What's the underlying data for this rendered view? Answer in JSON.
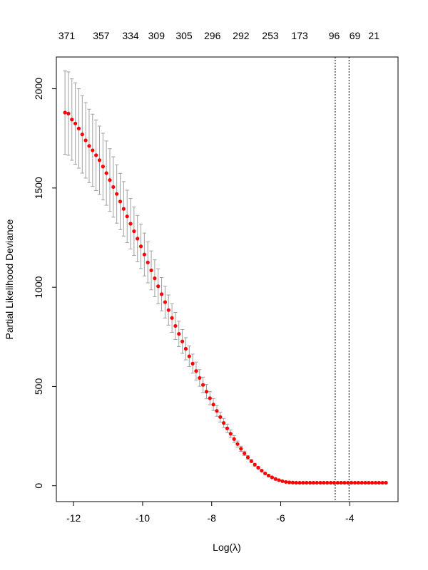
{
  "chart_data": {
    "type": "scatter",
    "xlabel": "Log(λ)",
    "ylabel": "Partial Likelihood Deviance",
    "xlim": [
      -12.5,
      -2.6
    ],
    "ylim": [
      -80,
      2160
    ],
    "x_ticks": [
      -12,
      -10,
      -8,
      -6,
      -4
    ],
    "y_ticks": [
      0,
      500,
      1000,
      1500,
      2000
    ],
    "grid": false,
    "point_color": "#ff0000",
    "errorbar_color": "#a0a0a0",
    "top_axis": {
      "labels": [
        "371",
        "357",
        "334",
        "309",
        "305",
        "296",
        "292",
        "253",
        "173",
        "96",
        "69",
        "21"
      ],
      "positions": [
        -12.2,
        -11.2,
        -10.35,
        -9.6,
        -8.8,
        -7.98,
        -7.15,
        -6.3,
        -5.45,
        -4.45,
        -3.85,
        -3.3
      ]
    },
    "vlines": [
      -4.42,
      -4.02
    ],
    "series": [
      {
        "x": [
          -12.25,
          -12.15,
          -12.05,
          -11.95,
          -11.85,
          -11.75,
          -11.65,
          -11.55,
          -11.45,
          -11.35,
          -11.25,
          -11.15,
          -11.05,
          -10.95,
          -10.85,
          -10.75,
          -10.65,
          -10.55,
          -10.45,
          -10.35,
          -10.25,
          -10.15,
          -10.05,
          -9.95,
          -9.85,
          -9.75,
          -9.65,
          -9.55,
          -9.45,
          -9.35,
          -9.25,
          -9.15,
          -9.05,
          -8.95,
          -8.85,
          -8.75,
          -8.65,
          -8.55,
          -8.45,
          -8.35,
          -8.25,
          -8.15,
          -8.05,
          -7.95,
          -7.85,
          -7.75,
          -7.65,
          -7.55,
          -7.45,
          -7.35,
          -7.25,
          -7.15,
          -7.05,
          -6.95,
          -6.85,
          -6.75,
          -6.65,
          -6.55,
          -6.45,
          -6.35,
          -6.25,
          -6.15,
          -6.05,
          -5.95,
          -5.85,
          -5.75,
          -5.65,
          -5.55,
          -5.45,
          -5.35,
          -5.25,
          -5.15,
          -5.05,
          -4.95,
          -4.85,
          -4.75,
          -4.65,
          -4.55,
          -4.45,
          -4.35,
          -4.25,
          -4.15,
          -4.05,
          -3.95,
          -3.85,
          -3.75,
          -3.65,
          -3.55,
          -3.45,
          -3.35,
          -3.25,
          -3.15,
          -3.05,
          -2.95
        ],
        "y": [
          1880,
          1875,
          1845,
          1825,
          1800,
          1770,
          1740,
          1712,
          1690,
          1665,
          1640,
          1608,
          1575,
          1540,
          1505,
          1470,
          1432,
          1395,
          1357,
          1320,
          1282,
          1245,
          1206,
          1165,
          1125,
          1085,
          1045,
          1005,
          965,
          925,
          885,
          845,
          805,
          765,
          727,
          690,
          652,
          615,
          578,
          543,
          508,
          474,
          441,
          409,
          377,
          346,
          316,
          289,
          262,
          235,
          210,
          186,
          163,
          143,
          124,
          106,
          91,
          76,
          62,
          51,
          42,
          34,
          28,
          23,
          19,
          17,
          16,
          15,
          15,
          15,
          15,
          15,
          15,
          15,
          15,
          15,
          15,
          15,
          15,
          15,
          15,
          15,
          15,
          15,
          15,
          15,
          15,
          15,
          15,
          15,
          15,
          15,
          15,
          15
        ],
        "err": [
          210,
          210,
          205,
          205,
          200,
          195,
          190,
          185,
          182,
          178,
          172,
          168,
          162,
          158,
          152,
          147,
          142,
          137,
          132,
          127,
          122,
          117,
          112,
          108,
          103,
          98,
          93,
          88,
          84,
          80,
          76,
          72,
          68,
          64,
          60,
          56,
          52,
          48,
          45,
          42,
          39,
          36,
          33,
          30,
          27,
          25,
          23,
          21,
          19,
          17,
          15,
          13,
          11,
          9,
          8,
          7,
          6,
          5,
          4,
          3,
          3,
          2,
          2,
          2,
          2,
          2,
          2,
          2,
          2,
          2,
          2,
          2,
          2,
          2,
          2,
          2,
          2,
          2,
          2,
          2,
          2,
          2,
          2,
          2,
          2,
          2,
          2,
          2,
          2,
          2,
          2,
          2,
          2,
          2
        ]
      }
    ]
  }
}
